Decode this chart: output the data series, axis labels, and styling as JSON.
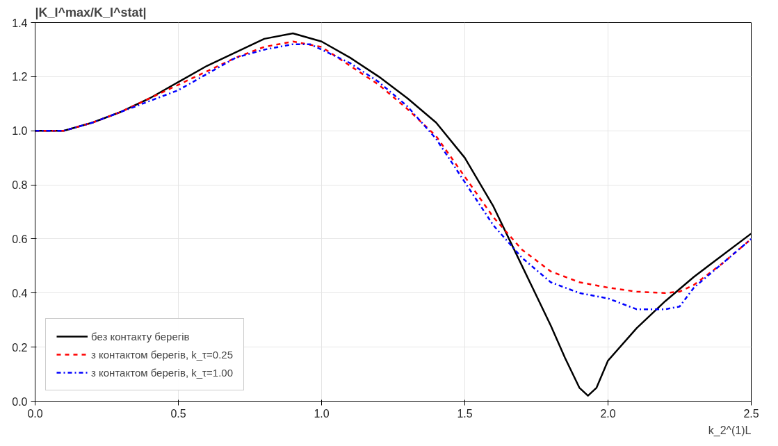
{
  "chart_data": {
    "type": "line",
    "ylabel": "|K_I^max/K_I^stat|",
    "xlabel": "k_2^(1)L",
    "xlim": [
      0,
      2.5
    ],
    "ylim": [
      0,
      1.4
    ],
    "xticks": [
      {
        "value": 0,
        "label": "0.0"
      },
      {
        "value": 0.5,
        "label": "0.5"
      },
      {
        "value": 1,
        "label": "1.0"
      },
      {
        "value": 1.5,
        "label": "1.5"
      },
      {
        "value": 2,
        "label": "2.0"
      },
      {
        "value": 2.5,
        "label": "2.5"
      }
    ],
    "yticks": [
      {
        "value": 0,
        "label": "0.0"
      },
      {
        "value": 0.2,
        "label": "0.2"
      },
      {
        "value": 0.4,
        "label": "0.4"
      },
      {
        "value": 0.6,
        "label": "0.6"
      },
      {
        "value": 0.8,
        "label": "0.8"
      },
      {
        "value": 1,
        "label": "1.0"
      },
      {
        "value": 1.2,
        "label": "1.2"
      },
      {
        "value": 1.4,
        "label": "1.4"
      }
    ],
    "grid": true,
    "legend": "bottom left",
    "marker": "none",
    "series": [
      {
        "name": "без контакту берегів",
        "color": "#000000",
        "line_style": "solid",
        "x": [
          0,
          0.1,
          0.2,
          0.3,
          0.4,
          0.5,
          0.6,
          0.7,
          0.8,
          0.9,
          1.0,
          1.1,
          1.2,
          1.3,
          1.4,
          1.5,
          1.6,
          1.7,
          1.8,
          1.85,
          1.9,
          1.93,
          1.96,
          2.0,
          2.1,
          2.2,
          2.3,
          2.4,
          2.5
        ],
        "values": [
          1.0,
          1.0,
          1.03,
          1.07,
          1.12,
          1.18,
          1.24,
          1.29,
          1.34,
          1.36,
          1.33,
          1.27,
          1.2,
          1.12,
          1.03,
          0.9,
          0.72,
          0.5,
          0.28,
          0.16,
          0.05,
          0.02,
          0.05,
          0.15,
          0.27,
          0.37,
          0.46,
          0.54,
          0.62
        ]
      },
      {
        "name": "з контактом берегів, k_τ=0.25",
        "color": "#ff0000",
        "line_style": "dashed",
        "x": [
          0,
          0.1,
          0.2,
          0.3,
          0.4,
          0.5,
          0.6,
          0.7,
          0.8,
          0.9,
          1.0,
          1.1,
          1.2,
          1.3,
          1.4,
          1.5,
          1.6,
          1.7,
          1.8,
          1.9,
          2.0,
          2.1,
          2.2,
          2.25,
          2.3,
          2.4,
          2.5
        ],
        "values": [
          1.0,
          1.0,
          1.03,
          1.07,
          1.12,
          1.17,
          1.22,
          1.27,
          1.31,
          1.33,
          1.31,
          1.24,
          1.17,
          1.08,
          0.98,
          0.83,
          0.68,
          0.56,
          0.48,
          0.44,
          0.42,
          0.405,
          0.4,
          0.405,
          0.43,
          0.51,
          0.6
        ]
      },
      {
        "name": "з контактом берегів, k_τ=1.00",
        "color": "#0000ff",
        "line_style": "dashdot",
        "x": [
          0,
          0.1,
          0.2,
          0.3,
          0.4,
          0.5,
          0.6,
          0.7,
          0.8,
          0.9,
          0.96,
          1.0,
          1.1,
          1.2,
          1.3,
          1.4,
          1.5,
          1.6,
          1.7,
          1.8,
          1.9,
          2.0,
          2.1,
          2.2,
          2.25,
          2.3,
          2.4,
          2.5
        ],
        "values": [
          1.0,
          1.0,
          1.03,
          1.07,
          1.11,
          1.15,
          1.21,
          1.27,
          1.3,
          1.32,
          1.32,
          1.3,
          1.25,
          1.18,
          1.09,
          0.97,
          0.81,
          0.65,
          0.53,
          0.44,
          0.4,
          0.38,
          0.34,
          0.34,
          0.35,
          0.42,
          0.51,
          0.6
        ]
      }
    ]
  }
}
